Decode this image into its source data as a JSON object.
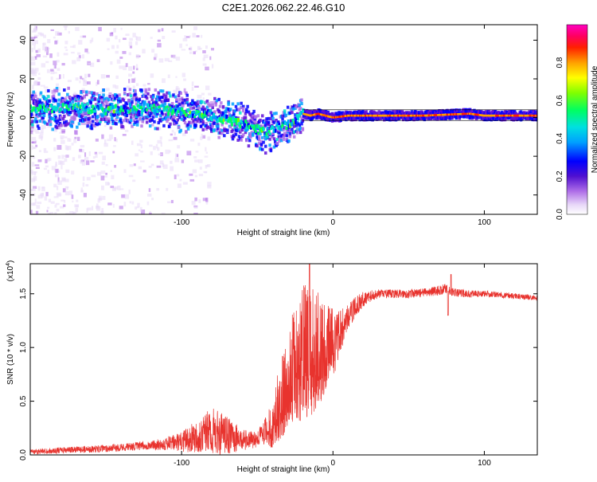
{
  "title": "C2E1.2026.062.22.46.G10",
  "chart_data": [
    {
      "type": "heatmap",
      "name": "spectrogram",
      "title": "C2E1.2026.062.22.46.G10",
      "xlabel": "Height of straight line (km)",
      "ylabel": "Frequency (Hz)",
      "xlim": [
        -200,
        135
      ],
      "ylim": [
        -50,
        48
      ],
      "xticks": [
        -100,
        0,
        100
      ],
      "xtick_labels": [
        "-100",
        "0",
        "100"
      ],
      "yticks": [
        -40,
        -20,
        0,
        20,
        40
      ],
      "ytick_labels": [
        "-40",
        "-20",
        "0",
        "20",
        "40"
      ],
      "colorbar": {
        "label": "Normalized spectral amplitude",
        "range": [
          0,
          1
        ],
        "ticks": [
          0.0,
          0.2,
          0.4,
          0.6,
          0.8
        ],
        "tick_labels": [
          "0.0",
          "0.2",
          "0.4",
          "0.6",
          "0.8"
        ],
        "colors": [
          "#e8d8f8",
          "#8a2be2",
          "#0000ff",
          "#00c8ff",
          "#00ff80",
          "#80ff00",
          "#ffff00",
          "#ff8000",
          "#ff0000",
          "#ff00c0"
        ]
      },
      "ridge": {
        "description_points_x": [
          -200,
          -170,
          -150,
          -120,
          -100,
          -80,
          -60,
          -45,
          -40,
          -30,
          -20,
          -15,
          -10,
          -5,
          0,
          10,
          30,
          60,
          90,
          100,
          135
        ],
        "description_points_y": [
          4,
          5,
          4,
          5,
          3,
          0,
          -3,
          -8,
          -6,
          -4,
          2,
          1,
          2,
          1,
          0,
          1,
          1,
          1,
          2,
          1,
          1
        ]
      }
    },
    {
      "type": "line",
      "name": "snr",
      "xlabel": "Height of straight line (km)",
      "ylabel": "SNR (10 * v/v)",
      "yscale_label": "(x10",
      "yscale_exponent": "4",
      "xlim": [
        -200,
        135
      ],
      "ylim": [
        0,
        17800
      ],
      "xticks": [
        -100,
        0,
        100
      ],
      "xtick_labels": [
        "-100",
        "0",
        "100"
      ],
      "yticks": [
        0,
        5000,
        10000,
        15000
      ],
      "ytick_labels": [
        "0.0",
        "0.5",
        "1.0",
        "1.5"
      ],
      "color": "#e8332e",
      "trend": {
        "x": [
          -200,
          -150,
          -120,
          -100,
          -90,
          -80,
          -70,
          -60,
          -50,
          -40,
          -35,
          -30,
          -25,
          -20,
          -15,
          -10,
          -5,
          0,
          5,
          10,
          15,
          20,
          25,
          30,
          40,
          50,
          60,
          70,
          75,
          80,
          90,
          100,
          110,
          120,
          135
        ],
        "y": [
          300,
          600,
          900,
          1200,
          1800,
          2200,
          1800,
          1400,
          1400,
          2000,
          3500,
          5000,
          6500,
          7000,
          7200,
          7500,
          8500,
          10000,
          11500,
          12800,
          13800,
          14500,
          14800,
          15000,
          15000,
          15000,
          15100,
          15300,
          15500,
          15100,
          15000,
          15000,
          14900,
          14800,
          14600
        ]
      },
      "noise": {
        "x": [
          -200,
          -120,
          -100,
          -90,
          -80,
          -70,
          -60,
          -50,
          -45,
          -40,
          -35,
          -30,
          -25,
          -20,
          -15,
          -10,
          -5,
          0,
          5,
          10,
          20,
          30,
          60,
          70,
          80,
          100,
          135
        ],
        "amp": [
          250,
          400,
          900,
          1600,
          2200,
          1800,
          1000,
          700,
          1200,
          2500,
          3500,
          4500,
          5500,
          6500,
          6000,
          5500,
          4500,
          3000,
          2000,
          1200,
          700,
          400,
          400,
          500,
          400,
          300,
          250
        ]
      },
      "features": {
        "spike_x": -15.5,
        "spike_y": 17800,
        "dip_x": 76,
        "dip_y": 13000,
        "peak_x": 78,
        "peak_y": 16800
      }
    }
  ]
}
